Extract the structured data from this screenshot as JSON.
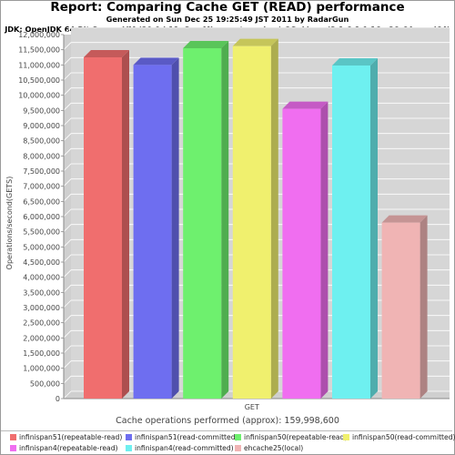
{
  "chart_data": {
    "type": "bar",
    "title": "Report: Comparing Cache GET (READ) performance",
    "subtitle_line1": "Generated on Sun Dec 25 19:25:49 JST 2011 by RadarGun",
    "subtitle_line2": "JDK: OpenJDK 64-Bit Server VM (20.0-b11, Sun Microsystems Inc.) OS: Linux (3.1.6-1.fc16.x86_64, amd64)",
    "ylabel": "Operations/second(GETS)",
    "xlabel": "Cache operations performed (approx): 159,998,600",
    "categories": [
      "GET"
    ],
    "ylim": [
      0,
      12000000
    ],
    "ytick_step": 500000,
    "yticks": [
      "0",
      "500,000",
      "1,000,000",
      "1,500,000",
      "2,000,000",
      "2,500,000",
      "3,000,000",
      "3,500,000",
      "4,000,000",
      "4,500,000",
      "5,000,000",
      "5,500,000",
      "6,000,000",
      "6,500,000",
      "7,000,000",
      "7,500,000",
      "8,000,000",
      "8,500,000",
      "9,000,000",
      "9,500,000",
      "10,000,000",
      "10,500,000",
      "11,000,000",
      "11,500,000",
      "12,000,000"
    ],
    "grid": true,
    "legend_position": "bottom",
    "series": [
      {
        "name": "infinispan51(repeatable-read)",
        "values": [
          11250000
        ],
        "color": "#f06e6e"
      },
      {
        "name": "infinispan51(read-committed)",
        "values": [
          11000000
        ],
        "color": "#6e6ef0"
      },
      {
        "name": "infinispan50(repeatable-read)",
        "values": [
          11550000
        ],
        "color": "#6ef06e"
      },
      {
        "name": "infinispan50(read-committed)",
        "values": [
          11620000
        ],
        "color": "#f0f06e"
      },
      {
        "name": "infinispan4(repeatable-read)",
        "values": [
          9550000
        ],
        "color": "#f06ef0"
      },
      {
        "name": "infinispan4(read-committed)",
        "values": [
          10980000
        ],
        "color": "#6ef0f0"
      },
      {
        "name": "ehcache25(local)",
        "values": [
          5800000
        ],
        "color": "#f0b4b4"
      }
    ]
  }
}
